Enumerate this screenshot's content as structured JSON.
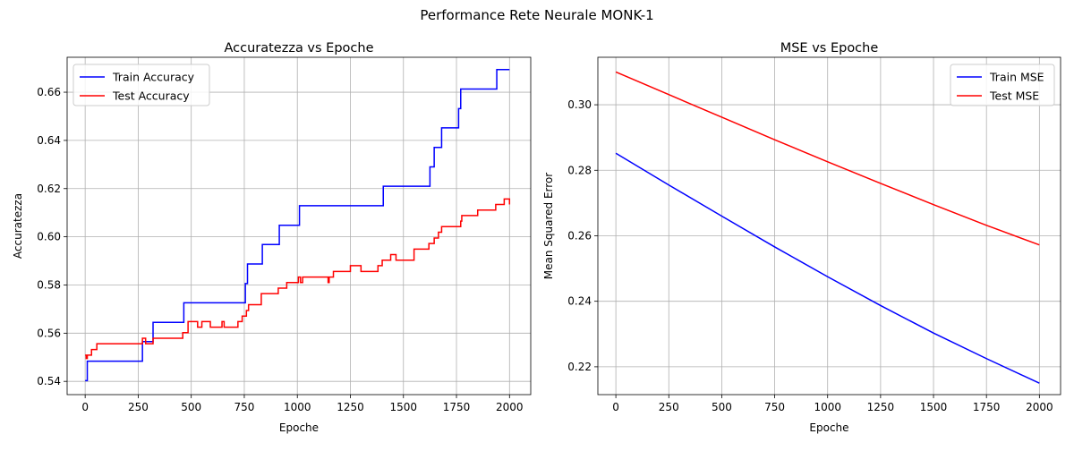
{
  "figure": {
    "suptitle": "Performance Rete Neurale MONK-1"
  },
  "chart_data": [
    {
      "type": "line",
      "title": "Accuratezza vs Epoche",
      "xlabel": "Epoche",
      "ylabel": "Accuratezza",
      "xlim": [
        -85,
        2100
      ],
      "ylim": [
        0.5345,
        0.6745
      ],
      "xticks": [
        0,
        250,
        500,
        750,
        1000,
        1250,
        1500,
        1750,
        2000
      ],
      "yticks": [
        0.54,
        0.56,
        0.58,
        0.6,
        0.62,
        0.64,
        0.66
      ],
      "ytick_labels": [
        "0.54",
        "0.56",
        "0.58",
        "0.60",
        "0.62",
        "0.64",
        "0.66"
      ],
      "grid": true,
      "legend": "upper-left",
      "series": [
        {
          "name": "Train Accuracy",
          "color": "#0000ff",
          "step": true,
          "points": [
            [
              0,
              0.5403
            ],
            [
              10,
              0.5484
            ],
            [
              270,
              0.5565
            ],
            [
              320,
              0.5645
            ],
            [
              465,
              0.5726
            ],
            [
              755,
              0.5806
            ],
            [
              765,
              0.5887
            ],
            [
              835,
              0.5968
            ],
            [
              915,
              0.6048
            ],
            [
              1010,
              0.6129
            ],
            [
              1405,
              0.621
            ],
            [
              1625,
              0.629
            ],
            [
              1645,
              0.6371
            ],
            [
              1680,
              0.6452
            ],
            [
              1760,
              0.6532
            ],
            [
              1770,
              0.6613
            ],
            [
              1940,
              0.6694
            ],
            [
              2000,
              0.6694
            ]
          ]
        },
        {
          "name": "Test Accuracy",
          "color": "#ff0000",
          "step": true,
          "points": [
            [
              0,
              0.5509
            ],
            [
              5,
              0.5495
            ],
            [
              10,
              0.5509
            ],
            [
              30,
              0.5532
            ],
            [
              55,
              0.5556
            ],
            [
              270,
              0.5579
            ],
            [
              285,
              0.5556
            ],
            [
              320,
              0.5579
            ],
            [
              460,
              0.5602
            ],
            [
              485,
              0.5648
            ],
            [
              530,
              0.5625
            ],
            [
              550,
              0.5648
            ],
            [
              590,
              0.5625
            ],
            [
              645,
              0.5648
            ],
            [
              655,
              0.5625
            ],
            [
              720,
              0.5648
            ],
            [
              740,
              0.5671
            ],
            [
              760,
              0.5694
            ],
            [
              770,
              0.5718
            ],
            [
              830,
              0.5764
            ],
            [
              910,
              0.5787
            ],
            [
              950,
              0.581
            ],
            [
              1005,
              0.5833
            ],
            [
              1015,
              0.581
            ],
            [
              1025,
              0.5833
            ],
            [
              1145,
              0.581
            ],
            [
              1150,
              0.5833
            ],
            [
              1170,
              0.5856
            ],
            [
              1250,
              0.588
            ],
            [
              1300,
              0.5856
            ],
            [
              1380,
              0.588
            ],
            [
              1400,
              0.5903
            ],
            [
              1440,
              0.5926
            ],
            [
              1465,
              0.5903
            ],
            [
              1550,
              0.5949
            ],
            [
              1620,
              0.5972
            ],
            [
              1645,
              0.5995
            ],
            [
              1665,
              0.6019
            ],
            [
              1680,
              0.6042
            ],
            [
              1770,
              0.6065
            ],
            [
              1775,
              0.6088
            ],
            [
              1850,
              0.6111
            ],
            [
              1935,
              0.6134
            ],
            [
              1975,
              0.6157
            ],
            [
              2000,
              0.6134
            ]
          ]
        }
      ]
    },
    {
      "type": "line",
      "title": "MSE vs Epoche",
      "xlabel": "Epoche",
      "ylabel": "Mean Squared Error",
      "xlim": [
        -85,
        2100
      ],
      "ylim": [
        0.2115,
        0.3145
      ],
      "xticks": [
        0,
        250,
        500,
        750,
        1000,
        1250,
        1500,
        1750,
        2000
      ],
      "yticks": [
        0.22,
        0.24,
        0.26,
        0.28,
        0.3
      ],
      "ytick_labels": [
        "0.22",
        "0.24",
        "0.26",
        "0.28",
        "0.30"
      ],
      "grid": true,
      "legend": "upper-right",
      "series": [
        {
          "name": "Train MSE",
          "color": "#0000ff",
          "step": false,
          "points": [
            [
              0,
              0.2852
            ],
            [
              250,
              0.2755
            ],
            [
              500,
              0.266
            ],
            [
              750,
              0.2566
            ],
            [
              1000,
              0.2475
            ],
            [
              1250,
              0.2387
            ],
            [
              1500,
              0.2303
            ],
            [
              1750,
              0.2225
            ],
            [
              2000,
              0.215
            ]
          ]
        },
        {
          "name": "Test MSE",
          "color": "#ff0000",
          "step": false,
          "points": [
            [
              0,
              0.31
            ],
            [
              250,
              0.3031
            ],
            [
              500,
              0.2962
            ],
            [
              750,
              0.2893
            ],
            [
              1000,
              0.2826
            ],
            [
              1250,
              0.276
            ],
            [
              1500,
              0.2695
            ],
            [
              1750,
              0.2632
            ],
            [
              2000,
              0.2572
            ]
          ]
        }
      ]
    }
  ]
}
